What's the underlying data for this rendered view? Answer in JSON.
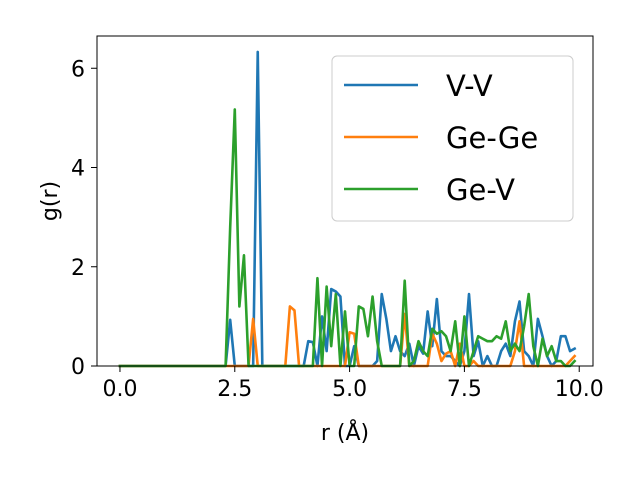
{
  "chart_data": {
    "type": "line",
    "title": "",
    "xlabel": "r (Å)",
    "ylabel": "g(r)",
    "xlim": [
      -0.5,
      10.3
    ],
    "ylim": [
      0,
      6.65
    ],
    "xticks": [
      0.0,
      2.5,
      5.0,
      7.5,
      10.0
    ],
    "xtick_labels": [
      "0.0",
      "2.5",
      "5.0",
      "7.5",
      "10.0"
    ],
    "yticks": [
      0,
      2,
      4,
      6
    ],
    "ytick_labels": [
      "0",
      "2",
      "4",
      "6"
    ],
    "grid": false,
    "legend": "upper right",
    "series": [
      {
        "name": "V-V",
        "color": "#1f77b4",
        "points": [
          [
            0.0,
            0
          ],
          [
            2.2,
            0
          ],
          [
            2.3,
            0
          ],
          [
            2.4,
            0.93
          ],
          [
            2.5,
            0
          ],
          [
            2.6,
            0
          ],
          [
            2.7,
            0
          ],
          [
            2.8,
            0
          ],
          [
            2.9,
            0
          ],
          [
            3.0,
            6.33
          ],
          [
            3.1,
            0
          ],
          [
            3.2,
            0
          ],
          [
            3.3,
            0
          ],
          [
            3.4,
            0
          ],
          [
            3.5,
            0
          ],
          [
            3.6,
            0
          ],
          [
            3.7,
            0
          ],
          [
            3.8,
            0
          ],
          [
            3.9,
            0
          ],
          [
            4.0,
            0
          ],
          [
            4.1,
            0.5
          ],
          [
            4.2,
            0.48
          ],
          [
            4.3,
            0
          ],
          [
            4.4,
            1.0
          ],
          [
            4.5,
            0.3
          ],
          [
            4.6,
            1.55
          ],
          [
            4.7,
            1.5
          ],
          [
            4.8,
            1.4
          ],
          [
            4.9,
            0
          ],
          [
            5.0,
            0
          ],
          [
            5.1,
            0.4
          ],
          [
            5.2,
            0
          ],
          [
            5.3,
            0
          ],
          [
            5.4,
            0
          ],
          [
            5.5,
            0
          ],
          [
            5.6,
            0.1
          ],
          [
            5.7,
            1.45
          ],
          [
            5.8,
            0.95
          ],
          [
            5.9,
            0.3
          ],
          [
            6.0,
            0.6
          ],
          [
            6.1,
            0.3
          ],
          [
            6.2,
            0.2
          ],
          [
            6.3,
            0.45
          ],
          [
            6.4,
            0
          ],
          [
            6.5,
            0.4
          ],
          [
            6.6,
            0.25
          ],
          [
            6.7,
            1.1
          ],
          [
            6.8,
            0.4
          ],
          [
            6.9,
            1.35
          ],
          [
            7.0,
            0.3
          ],
          [
            7.1,
            0.2
          ],
          [
            7.2,
            0.2
          ],
          [
            7.3,
            0.1
          ],
          [
            7.4,
            0
          ],
          [
            7.5,
            0.3
          ],
          [
            7.6,
            1.45
          ],
          [
            7.7,
            0.2
          ],
          [
            7.8,
            0.5
          ],
          [
            7.9,
            0
          ],
          [
            8.0,
            0.2
          ],
          [
            8.1,
            0
          ],
          [
            8.2,
            0
          ],
          [
            8.3,
            0.3
          ],
          [
            8.4,
            0.45
          ],
          [
            8.5,
            0.2
          ],
          [
            8.6,
            0.9
          ],
          [
            8.7,
            1.3
          ],
          [
            8.8,
            0.3
          ],
          [
            8.9,
            0.2
          ],
          [
            9.0,
            0
          ],
          [
            9.1,
            0.95
          ],
          [
            9.2,
            0.6
          ],
          [
            9.3,
            0.2
          ],
          [
            9.4,
            0
          ],
          [
            9.5,
            0.1
          ],
          [
            9.6,
            0.6
          ],
          [
            9.7,
            0.6
          ],
          [
            9.8,
            0.3
          ],
          [
            9.9,
            0.35
          ]
        ]
      },
      {
        "name": "Ge-Ge",
        "color": "#ff7f0e",
        "points": [
          [
            0.0,
            0
          ],
          [
            2.6,
            0
          ],
          [
            2.7,
            0
          ],
          [
            2.8,
            0
          ],
          [
            2.9,
            0.95
          ],
          [
            3.0,
            0
          ],
          [
            3.1,
            0
          ],
          [
            3.2,
            0
          ],
          [
            3.3,
            0
          ],
          [
            3.4,
            0
          ],
          [
            3.5,
            0
          ],
          [
            3.6,
            0
          ],
          [
            3.7,
            1.2
          ],
          [
            3.8,
            1.12
          ],
          [
            3.9,
            0
          ],
          [
            4.0,
            0
          ],
          [
            4.1,
            0
          ],
          [
            4.2,
            0
          ],
          [
            4.3,
            0
          ],
          [
            4.4,
            0
          ],
          [
            4.5,
            0
          ],
          [
            4.6,
            0
          ],
          [
            4.7,
            0
          ],
          [
            4.8,
            0
          ],
          [
            4.9,
            0
          ],
          [
            5.0,
            0.68
          ],
          [
            5.1,
            0.65
          ],
          [
            5.2,
            0
          ],
          [
            5.3,
            0
          ],
          [
            5.4,
            0
          ],
          [
            5.5,
            0
          ],
          [
            5.6,
            0
          ],
          [
            5.7,
            0
          ],
          [
            5.8,
            0
          ],
          [
            5.9,
            0
          ],
          [
            6.0,
            0
          ],
          [
            6.1,
            0
          ],
          [
            6.2,
            1.05
          ],
          [
            6.3,
            0
          ],
          [
            6.4,
            0
          ],
          [
            6.5,
            0
          ],
          [
            6.6,
            0
          ],
          [
            6.7,
            0
          ],
          [
            6.8,
            0.65
          ],
          [
            6.9,
            0.45
          ],
          [
            7.0,
            0.1
          ],
          [
            7.1,
            0.25
          ],
          [
            7.2,
            0.3
          ],
          [
            7.3,
            0
          ],
          [
            7.4,
            0.45
          ],
          [
            7.5,
            0
          ],
          [
            7.6,
            0
          ],
          [
            7.7,
            0.1
          ],
          [
            7.8,
            0
          ],
          [
            7.9,
            0
          ],
          [
            8.0,
            0
          ],
          [
            8.1,
            0
          ],
          [
            8.2,
            0
          ],
          [
            8.3,
            0
          ],
          [
            8.4,
            0
          ],
          [
            8.5,
            0
          ],
          [
            8.6,
            0.3
          ],
          [
            8.7,
            0.9
          ],
          [
            8.8,
            0
          ],
          [
            8.9,
            0
          ],
          [
            9.0,
            0
          ],
          [
            9.1,
            0
          ],
          [
            9.2,
            0
          ],
          [
            9.3,
            0
          ],
          [
            9.4,
            0
          ],
          [
            9.5,
            0
          ],
          [
            9.6,
            0
          ],
          [
            9.7,
            0
          ],
          [
            9.8,
            0.1
          ],
          [
            9.9,
            0.2
          ]
        ]
      },
      {
        "name": "Ge-V",
        "color": "#2ca02c",
        "points": [
          [
            0.0,
            0
          ],
          [
            2.2,
            0
          ],
          [
            2.3,
            0
          ],
          [
            2.4,
            2.8
          ],
          [
            2.5,
            5.17
          ],
          [
            2.6,
            1.2
          ],
          [
            2.7,
            2.23
          ],
          [
            2.8,
            0
          ],
          [
            2.9,
            0
          ],
          [
            3.0,
            0
          ],
          [
            3.1,
            0
          ],
          [
            3.2,
            0
          ],
          [
            3.3,
            0
          ],
          [
            3.4,
            0
          ],
          [
            3.5,
            0
          ],
          [
            3.6,
            0
          ],
          [
            3.7,
            0
          ],
          [
            3.8,
            0
          ],
          [
            3.9,
            0
          ],
          [
            4.0,
            0
          ],
          [
            4.1,
            0
          ],
          [
            4.2,
            0
          ],
          [
            4.3,
            1.77
          ],
          [
            4.4,
            0
          ],
          [
            4.5,
            1.6
          ],
          [
            4.6,
            0.4
          ],
          [
            4.7,
            1.45
          ],
          [
            4.8,
            0
          ],
          [
            4.9,
            1.1
          ],
          [
            5.0,
            0
          ],
          [
            5.1,
            0
          ],
          [
            5.2,
            1.2
          ],
          [
            5.3,
            1.15
          ],
          [
            5.4,
            0.6
          ],
          [
            5.5,
            1.4
          ],
          [
            5.6,
            0.5
          ],
          [
            5.7,
            0
          ],
          [
            5.8,
            0
          ],
          [
            5.9,
            0
          ],
          [
            6.0,
            0
          ],
          [
            6.1,
            0
          ],
          [
            6.2,
            1.72
          ],
          [
            6.3,
            0
          ],
          [
            6.4,
            0.1
          ],
          [
            6.5,
            0.5
          ],
          [
            6.6,
            0.3
          ],
          [
            6.7,
            0.2
          ],
          [
            6.8,
            0.75
          ],
          [
            6.9,
            0.65
          ],
          [
            7.0,
            0.7
          ],
          [
            7.1,
            0.6
          ],
          [
            7.2,
            0.3
          ],
          [
            7.3,
            0.9
          ],
          [
            7.4,
            0
          ],
          [
            7.5,
            1.0
          ],
          [
            7.6,
            0
          ],
          [
            7.7,
            0.3
          ],
          [
            7.8,
            0.6
          ],
          [
            7.9,
            0.55
          ],
          [
            8.0,
            0.5
          ],
          [
            8.1,
            0.5
          ],
          [
            8.2,
            0.6
          ],
          [
            8.3,
            0.55
          ],
          [
            8.4,
            0.9
          ],
          [
            8.5,
            0.3
          ],
          [
            8.6,
            0.45
          ],
          [
            8.7,
            0.3
          ],
          [
            8.8,
            0.8
          ],
          [
            8.9,
            1.45
          ],
          [
            9.0,
            0.4
          ],
          [
            9.1,
            0
          ],
          [
            9.2,
            0.55
          ],
          [
            9.3,
            0.2
          ],
          [
            9.4,
            0.4
          ],
          [
            9.5,
            0.1
          ],
          [
            9.6,
            0.1
          ],
          [
            9.7,
            0
          ],
          [
            9.8,
            0
          ],
          [
            9.9,
            0.1
          ]
        ]
      }
    ]
  }
}
